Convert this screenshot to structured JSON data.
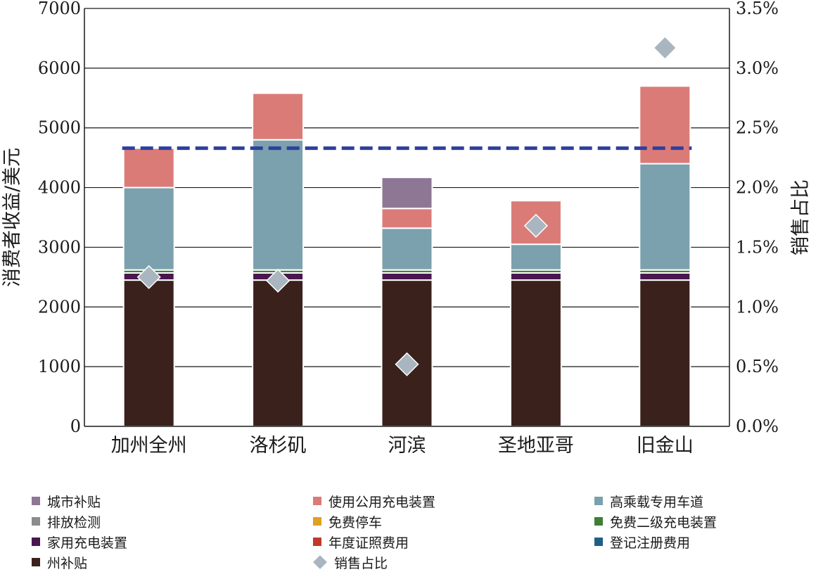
{
  "chart_data": {
    "type": "bar",
    "stacked": true,
    "categories": [
      "加州全州",
      "洛杉矶",
      "河滨",
      "圣地亚哥",
      "旧金山"
    ],
    "ylabel": "消费者收益/美元",
    "y2label": "销售占比",
    "ylim": [
      0,
      7000
    ],
    "y2lim": [
      0,
      3.5
    ],
    "yticks": [
      "0",
      "1000",
      "2000",
      "3000",
      "4000",
      "5000",
      "6000",
      "7000"
    ],
    "y2ticks": [
      "0.0%",
      "0.5%",
      "1.0%",
      "1.5%",
      "2.0%",
      "2.5%",
      "3.0%",
      "3.5%"
    ],
    "grid": true,
    "legend_position": "bottom",
    "series": [
      {
        "name": "州补贴",
        "color": "#3a211c",
        "values": [
          2450,
          2450,
          2450,
          2450,
          2450
        ]
      },
      {
        "name": "登记注册费用",
        "color": "#1f5f86",
        "values": [
          0,
          0,
          0,
          0,
          0
        ]
      },
      {
        "name": "年度证照费用",
        "color": "#c0392b",
        "values": [
          0,
          0,
          0,
          0,
          0
        ]
      },
      {
        "name": "家用充电装置",
        "color": "#4a1650",
        "values": [
          120,
          120,
          120,
          120,
          120
        ]
      },
      {
        "name": "免费二级充电装置",
        "color": "#3f7f32",
        "values": [
          50,
          50,
          50,
          50,
          50
        ]
      },
      {
        "name": "免费停车",
        "color": "#e0a020",
        "values": [
          0,
          0,
          0,
          0,
          0
        ]
      },
      {
        "name": "排放检测",
        "color": "#8c8c8c",
        "values": [
          0,
          0,
          0,
          0,
          0
        ]
      },
      {
        "name": "高乘载专用车道",
        "color": "#7ba0ae",
        "values": [
          1380,
          2180,
          700,
          430,
          1780
        ]
      },
      {
        "name": "使用公用充电装置",
        "color": "#db7b78",
        "values": [
          660,
          780,
          330,
          730,
          1300
        ]
      },
      {
        "name": "城市补贴",
        "color": "#8e7795",
        "values": [
          0,
          0,
          520,
          0,
          0
        ]
      }
    ],
    "share": {
      "name": "销售占比",
      "color": "#a9b6bf",
      "values": [
        1.25,
        1.22,
        0.52,
        1.68,
        3.17
      ]
    },
    "reference_line": {
      "value": 2.33,
      "axis": "y2",
      "color": "#2f3f9e",
      "style": "dashed"
    }
  },
  "legend": [
    {
      "label": "城市补贴",
      "color": "#8e7795",
      "shape": "square"
    },
    {
      "label": "使用公用充电装置",
      "color": "#db7b78",
      "shape": "square"
    },
    {
      "label": "高乘载专用车道",
      "color": "#7ba0ae",
      "shape": "square"
    },
    {
      "label": "排放检测",
      "color": "#8c8c8c",
      "shape": "square"
    },
    {
      "label": "免费停车",
      "color": "#e0a020",
      "shape": "square"
    },
    {
      "label": "免费二级充电装置",
      "color": "#3f7f32",
      "shape": "square"
    },
    {
      "label": "家用充电装置",
      "color": "#4a1650",
      "shape": "square"
    },
    {
      "label": "年度证照费用",
      "color": "#c0392b",
      "shape": "square"
    },
    {
      "label": "登记注册费用",
      "color": "#1f5f86",
      "shape": "square"
    },
    {
      "label": "州补贴",
      "color": "#3a211c",
      "shape": "square"
    },
    {
      "label": "销售占比",
      "color": "#a9b6bf",
      "shape": "diamond"
    }
  ]
}
